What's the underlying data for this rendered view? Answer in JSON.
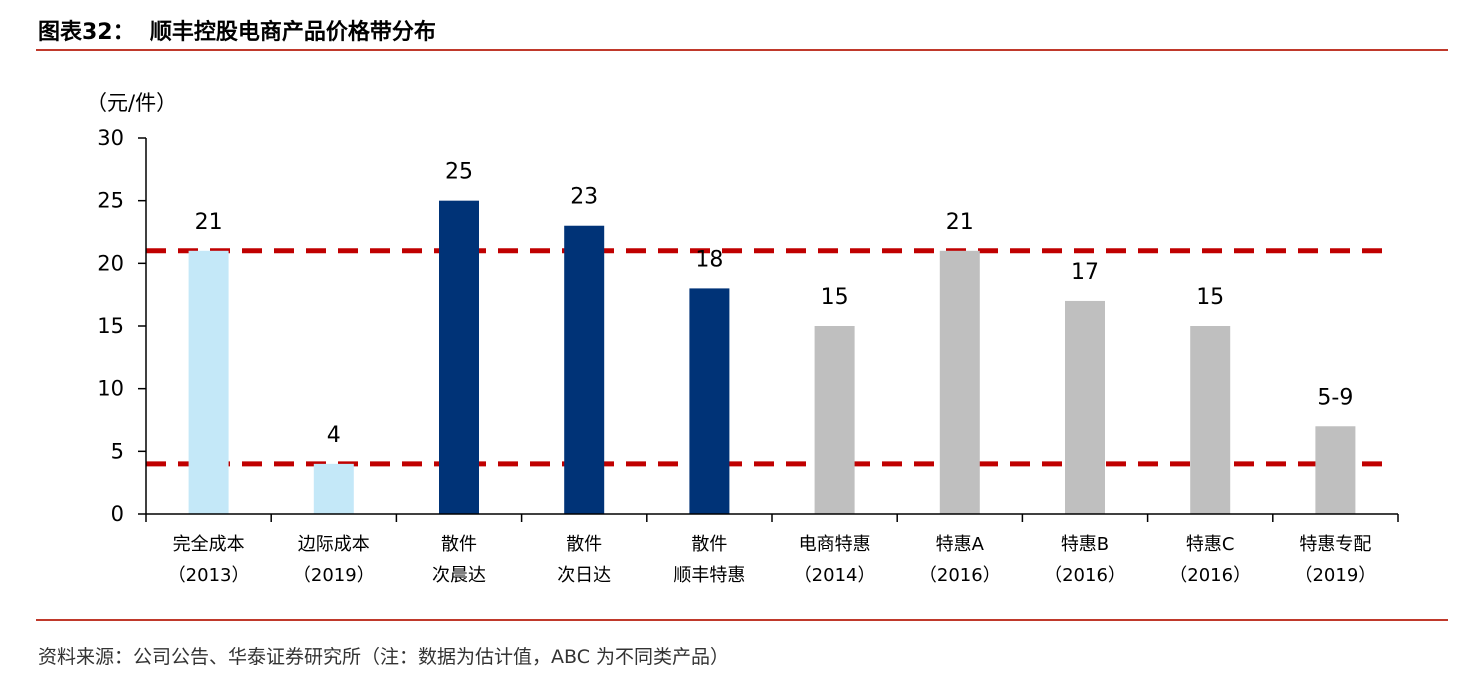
{
  "header": {
    "title": "图表32：  顺丰控股电商产品价格带分布"
  },
  "footer": {
    "source": "资料来源：公司公告、华泰证券研究所（注：数据为估计值，ABC 为不同类产品）"
  },
  "chart_data": {
    "type": "bar",
    "ylabel": "（元/件）",
    "ylim": [
      0,
      30
    ],
    "yticks": [
      "0",
      "5",
      "10",
      "15",
      "20",
      "25",
      "30"
    ],
    "categories": [
      [
        "完全成本",
        "（2013）"
      ],
      [
        "边际成本",
        "（2019）"
      ],
      [
        "散件",
        "次晨达"
      ],
      [
        "散件",
        "次日达"
      ],
      [
        "散件",
        "顺丰特惠"
      ],
      [
        "电商特惠",
        "（2014）"
      ],
      [
        "特惠A",
        "（2016）"
      ],
      [
        "特惠B",
        "（2016）"
      ],
      [
        "特惠C",
        "（2016）"
      ],
      [
        "特惠专配",
        "（2019）"
      ]
    ],
    "values": [
      21,
      4,
      25,
      23,
      18,
      15,
      21,
      17,
      15,
      7
    ],
    "value_labels": [
      "21",
      "4",
      "25",
      "23",
      "18",
      "15",
      "21",
      "17",
      "15",
      "5-9"
    ],
    "bar_colors": [
      "#c4e8f8",
      "#c4e8f8",
      "#003377",
      "#003377",
      "#003377",
      "#bfbfbf",
      "#bfbfbf",
      "#bfbfbf",
      "#bfbfbf",
      "#bfbfbf"
    ],
    "reference_lines": [
      {
        "value": 21,
        "color": "#c00000",
        "style": "dashed"
      },
      {
        "value": 4,
        "color": "#c00000",
        "style": "dashed"
      }
    ],
    "grid": false,
    "legend": "none"
  }
}
